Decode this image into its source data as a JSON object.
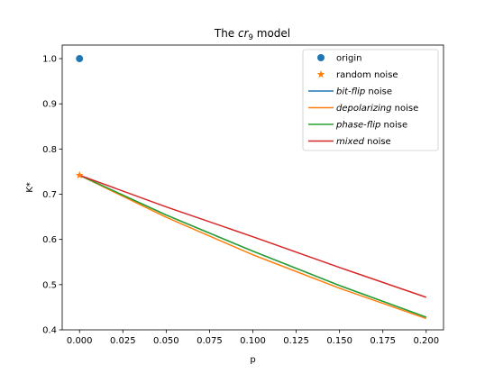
{
  "chart_data": {
    "type": "line",
    "title": {
      "prefix": "The ",
      "math_base": "cr",
      "math_subscript": "9",
      "suffix": " model"
    },
    "xlabel": "p",
    "ylabel": "K*",
    "xlim": [
      -0.01,
      0.21
    ],
    "ylim": [
      0.4,
      1.03
    ],
    "x_ticks": [
      0.0,
      0.025,
      0.05,
      0.075,
      0.1,
      0.125,
      0.15,
      0.175,
      0.2
    ],
    "x_tick_labels": [
      "0.000",
      "0.025",
      "0.050",
      "0.075",
      "0.100",
      "0.125",
      "0.150",
      "0.175",
      "0.200"
    ],
    "y_ticks": [
      0.4,
      0.5,
      0.6,
      0.7,
      0.8,
      0.9,
      1.0
    ],
    "y_tick_labels": [
      "0.4",
      "0.5",
      "0.6",
      "0.7",
      "0.8",
      "0.9",
      "1.0"
    ],
    "grid": false,
    "legend_position": "top-right",
    "points": [
      {
        "name": "origin",
        "marker": "circle",
        "color": "#1f77b4",
        "x": 0.0,
        "y": 1.0
      },
      {
        "name": "random noise",
        "marker": "star",
        "color": "#ff7f0e",
        "x": 0.0,
        "y": 0.742
      }
    ],
    "series": [
      {
        "name_italic": "bit-flip",
        "name_rest": " noise",
        "color": "#1f77b4",
        "x": [
          0.0,
          0.05,
          0.1,
          0.15,
          0.2
        ],
        "y": [
          0.742,
          0.654,
          0.574,
          0.498,
          0.428
        ]
      },
      {
        "name_italic": "depolarizing",
        "name_rest": " noise",
        "color": "#ff7f0e",
        "x": [
          0.0,
          0.05,
          0.1,
          0.15,
          0.2
        ],
        "y": [
          0.742,
          0.649,
          0.566,
          0.492,
          0.425
        ]
      },
      {
        "name_italic": "phase-flip",
        "name_rest": " noise",
        "color": "#2ca02c",
        "x": [
          0.0,
          0.05,
          0.1,
          0.15,
          0.2
        ],
        "y": [
          0.742,
          0.654,
          0.574,
          0.498,
          0.428
        ]
      },
      {
        "name_italic": "mixed",
        "name_rest": " noise",
        "color": "#d62728",
        "x": [
          0.0,
          0.05,
          0.1,
          0.15,
          0.2
        ],
        "y": [
          0.742,
          0.672,
          0.606,
          0.538,
          0.472
        ]
      }
    ]
  }
}
